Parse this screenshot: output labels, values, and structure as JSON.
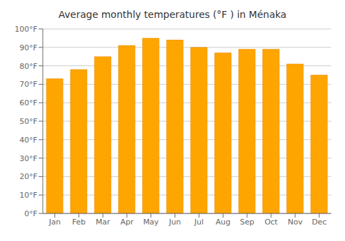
{
  "chart_data": {
    "type": "bar",
    "title": "Average monthly temperatures (°F ) in Ménaka",
    "categories": [
      "Jan",
      "Feb",
      "Mar",
      "Apr",
      "May",
      "Jun",
      "Jul",
      "Aug",
      "Sep",
      "Oct",
      "Nov",
      "Dec"
    ],
    "values": [
      73,
      78,
      85,
      91,
      95,
      94,
      90,
      87,
      89,
      89,
      81,
      75
    ],
    "color": "#FFA500",
    "ylim": [
      0,
      100
    ],
    "yticks": [
      {
        "value": 0,
        "label": "0°F"
      },
      {
        "value": 10,
        "label": "10°F"
      },
      {
        "value": 20,
        "label": "20°F"
      },
      {
        "value": 30,
        "label": "30°F"
      },
      {
        "value": 40,
        "label": "40°F"
      },
      {
        "value": 50,
        "label": "50°F"
      },
      {
        "value": 60,
        "label": "60°F"
      },
      {
        "value": 70,
        "label": "70°F"
      },
      {
        "value": 80,
        "label": "80°F"
      },
      {
        "value": 90,
        "label": "90°F"
      },
      {
        "value": 100,
        "label": "100°F"
      }
    ],
    "grid": true
  }
}
